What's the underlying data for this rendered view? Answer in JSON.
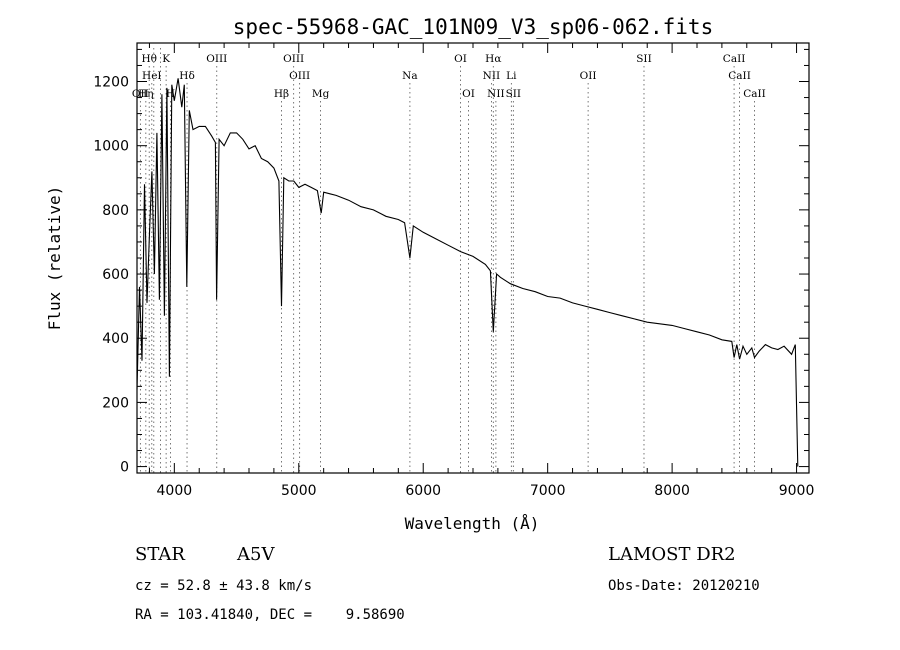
{
  "chart_data": {
    "type": "line",
    "title": "spec-55968-GAC_101N09_V3_sp06-062.fits",
    "xlabel": "Wavelength (Å)",
    "ylabel": "Flux (relative)",
    "xlim": [
      3700,
      9100
    ],
    "ylim": [
      -20,
      1320
    ],
    "xticks": [
      4000,
      5000,
      6000,
      7000,
      8000,
      9000
    ],
    "yticks": [
      0,
      200,
      400,
      600,
      800,
      1000,
      1200
    ],
    "spectrum": {
      "name": "flux",
      "x": [
        3700,
        3720,
        3740,
        3760,
        3780,
        3800,
        3820,
        3840,
        3860,
        3880,
        3900,
        3920,
        3940,
        3960,
        3980,
        4000,
        4030,
        4060,
        4080,
        4100,
        4120,
        4150,
        4200,
        4250,
        4300,
        4330,
        4340,
        4360,
        4400,
        4450,
        4500,
        4550,
        4600,
        4650,
        4700,
        4750,
        4800,
        4840,
        4861,
        4880,
        4920,
        4960,
        5000,
        5050,
        5100,
        5150,
        5180,
        5200,
        5250,
        5300,
        5400,
        5500,
        5600,
        5700,
        5800,
        5850,
        5893,
        5920,
        6000,
        6100,
        6200,
        6300,
        6400,
        6500,
        6540,
        6563,
        6590,
        6620,
        6700,
        6800,
        6900,
        7000,
        7100,
        7200,
        7300,
        7400,
        7500,
        7600,
        7700,
        7800,
        7900,
        8000,
        8100,
        8200,
        8300,
        8400,
        8480,
        8498,
        8520,
        8542,
        8570,
        8600,
        8640,
        8662,
        8700,
        8750,
        8800,
        8850,
        8900,
        8960,
        8990,
        9000,
        9010
      ],
      "y": [
        240,
        560,
        330,
        880,
        510,
        720,
        920,
        600,
        1040,
        520,
        1160,
        470,
        1180,
        280,
        1190,
        1140,
        1210,
        1120,
        1190,
        560,
        1110,
        1050,
        1060,
        1060,
        1030,
        1010,
        520,
        1020,
        1000,
        1040,
        1040,
        1020,
        990,
        1000,
        960,
        950,
        930,
        890,
        500,
        900,
        890,
        890,
        870,
        880,
        870,
        860,
        790,
        855,
        850,
        845,
        830,
        810,
        800,
        780,
        770,
        760,
        650,
        750,
        730,
        710,
        690,
        670,
        655,
        630,
        610,
        420,
        600,
        590,
        570,
        555,
        545,
        530,
        525,
        510,
        500,
        490,
        480,
        470,
        460,
        450,
        445,
        440,
        430,
        420,
        410,
        395,
        390,
        340,
        380,
        335,
        375,
        350,
        370,
        340,
        360,
        380,
        370,
        365,
        375,
        350,
        380,
        180,
        0
      ]
    },
    "line_markers": [
      {
        "wavelength": 3727,
        "label": "OII",
        "row": 3
      },
      {
        "wavelength": 3771,
        "label": "Hη",
        "row": 3
      },
      {
        "wavelength": 3798,
        "label": "Hθ",
        "row": 1
      },
      {
        "wavelength": 3819,
        "label": "HeI",
        "row": 2
      },
      {
        "wavelength": 3835,
        "label": "",
        "row": 0
      },
      {
        "wavelength": 3889,
        "label": "",
        "row": 0
      },
      {
        "wavelength": 3934,
        "label": "K",
        "row": 1
      },
      {
        "wavelength": 3969,
        "label": "H",
        "row": 3
      },
      {
        "wavelength": 4102,
        "label": "Hδ",
        "row": 2
      },
      {
        "wavelength": 4341,
        "label": "OIII",
        "row": 1
      },
      {
        "wavelength": 4861,
        "label": "Hβ",
        "row": 3
      },
      {
        "wavelength": 4959,
        "label": "OIII",
        "row": 1
      },
      {
        "wavelength": 5007,
        "label": "OIII",
        "row": 2
      },
      {
        "wavelength": 5175,
        "label": "Mg",
        "row": 3
      },
      {
        "wavelength": 5893,
        "label": "Na",
        "row": 2
      },
      {
        "wavelength": 6300,
        "label": "OI",
        "row": 1
      },
      {
        "wavelength": 6364,
        "label": "OI",
        "row": 3
      },
      {
        "wavelength": 6548,
        "label": "NII",
        "row": 2
      },
      {
        "wavelength": 6563,
        "label": "Hα",
        "row": 1
      },
      {
        "wavelength": 6584,
        "label": "NII",
        "row": 3
      },
      {
        "wavelength": 6708,
        "label": "Li",
        "row": 2
      },
      {
        "wavelength": 6724,
        "label": "SII",
        "row": 3
      },
      {
        "wavelength": 7325,
        "label": "OII",
        "row": 2
      },
      {
        "wavelength": 7774,
        "label": "SII",
        "row": 1
      },
      {
        "wavelength": 8498,
        "label": "CaII",
        "row": 1
      },
      {
        "wavelength": 8542,
        "label": "CaII",
        "row": 2
      },
      {
        "wavelength": 8662,
        "label": "CaII",
        "row": 3
      }
    ]
  },
  "info": {
    "object_class": "STAR",
    "subclass": "A5V",
    "survey": "LAMOST DR2",
    "cz": "cz = 52.8 ± 43.8 km/s",
    "obs_date": "Obs-Date: 20120210",
    "coords": "RA = 103.41840, DEC =    9.58690"
  },
  "colors": {
    "ink": "#000000",
    "marker": "#555555",
    "background": "#ffffff"
  }
}
